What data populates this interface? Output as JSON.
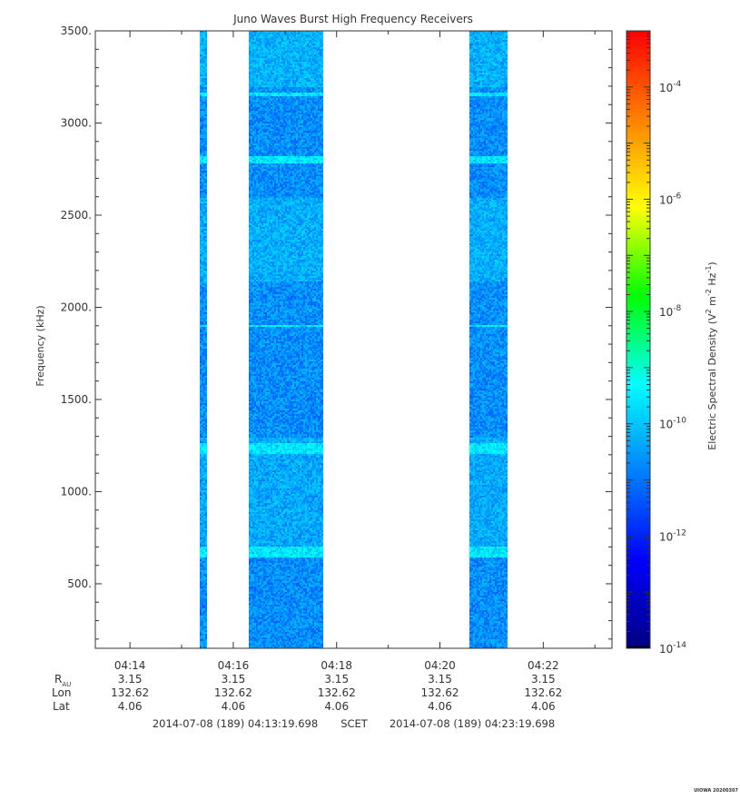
{
  "chart_data": {
    "type": "heatmap",
    "title": "Juno Waves Burst High Frequency Receivers",
    "ylabel": "Frequency (kHz)",
    "ylim": [
      150,
      3500
    ],
    "y_ticks": [
      {
        "value": 500,
        "label": "500."
      },
      {
        "value": 1000,
        "label": "1000."
      },
      {
        "value": 1500,
        "label": "1500."
      },
      {
        "value": 2000,
        "label": "2000."
      },
      {
        "value": 2500,
        "label": "2500."
      },
      {
        "value": 3000,
        "label": "3000."
      },
      {
        "value": 3500,
        "label": "3500."
      }
    ],
    "x_range_min": [
      13.33,
      23.33
    ],
    "x_ticks": [
      {
        "min": 14,
        "label": "04:14",
        "r_au": "3.15",
        "lon": "132.62",
        "lat": "4.06"
      },
      {
        "min": 16,
        "label": "04:16",
        "r_au": "3.15",
        "lon": "132.62",
        "lat": "4.06"
      },
      {
        "min": 18,
        "label": "04:18",
        "r_au": "3.15",
        "lon": "132.62",
        "lat": "4.06"
      },
      {
        "min": 20,
        "label": "04:20",
        "r_au": "3.15",
        "lon": "132.62",
        "lat": "4.06"
      },
      {
        "min": 22,
        "label": "04:22",
        "r_au": "3.15",
        "lon": "132.62",
        "lat": "4.06"
      }
    ],
    "row_labels": {
      "r": "R",
      "r_sub": "AU",
      "lon": "Lon",
      "lat": "Lat"
    },
    "time_range": {
      "start": "2014-07-08 (189) 04:13:19.698",
      "middle": "SCET",
      "end": "2014-07-08 (189) 04:23:19.698"
    },
    "data_segments_min": [
      [
        15.35,
        15.5
      ],
      [
        16.3,
        17.73
      ],
      [
        20.57,
        21.3
      ]
    ],
    "bright_bands_khz": [
      {
        "f": 680,
        "w": 60
      },
      {
        "f": 1240,
        "w": 60
      },
      {
        "f": 1900,
        "w": 12
      },
      {
        "f": 2810,
        "w": 40
      },
      {
        "f": 3160,
        "w": 20
      }
    ],
    "colorbar": {
      "label_main": "Electric Spectral Density (V",
      "label_sup1": "2",
      "label_m": " m",
      "label_sup2": "-2",
      "label_hz": " Hz",
      "label_sup3": "-1",
      "label_end": ")",
      "log_range": [
        -14,
        -3
      ],
      "ticks": [
        {
          "exp": -14,
          "base": "10",
          "sup": "-14"
        },
        {
          "exp": -12,
          "base": "10",
          "sup": "-12"
        },
        {
          "exp": -10,
          "base": "10",
          "sup": "-10"
        },
        {
          "exp": -8,
          "base": "10",
          "sup": "-8"
        },
        {
          "exp": -6,
          "base": "10",
          "sup": "-6"
        },
        {
          "exp": -4,
          "base": "10",
          "sup": "-4"
        }
      ],
      "colors": [
        "#000080",
        "#0000ff",
        "#0080ff",
        "#00ffff",
        "#00ff00",
        "#ffff00",
        "#ff8000",
        "#ff0000"
      ]
    },
    "footer_tag": "UIOWA 20200307"
  }
}
